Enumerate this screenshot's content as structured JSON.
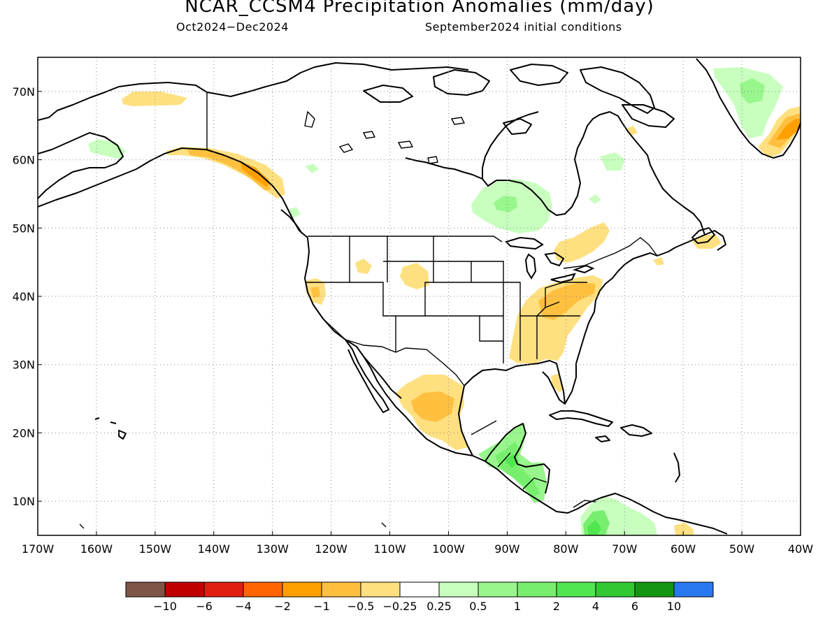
{
  "title": "NCAR_CCSM4 Precipitation Anomalies (mm/day)",
  "subtitle_left": "Oct2024−Dec2024",
  "subtitle_right": "September2024 initial conditions",
  "map": {
    "lon_range": [
      -170,
      -40
    ],
    "lat_range": [
      5,
      75
    ],
    "lat_ticks": [
      "70N",
      "60N",
      "50N",
      "40N",
      "30N",
      "20N",
      "10N"
    ],
    "lon_ticks": [
      "170W",
      "160W",
      "150W",
      "140W",
      "130W",
      "120W",
      "110W",
      "100W",
      "90W",
      "80W",
      "70W",
      "60W",
      "50W",
      "40W"
    ],
    "grid": "dotted"
  },
  "colorbar": {
    "colors": [
      "#7f5547",
      "#c00000",
      "#e01f10",
      "#ff6400",
      "#ffa000",
      "#ffc040",
      "#ffe080",
      "#ffffff",
      "#c8ffbe",
      "#98f68c",
      "#78ee6e",
      "#50e650",
      "#32c832",
      "#149614",
      "#2878f0"
    ],
    "labels": [
      "−10",
      "−6",
      "−4",
      "−2",
      "−1",
      "−0.5",
      "−0.25",
      "0.25",
      "0.5",
      "1",
      "2",
      "4",
      "6",
      "10"
    ]
  }
}
